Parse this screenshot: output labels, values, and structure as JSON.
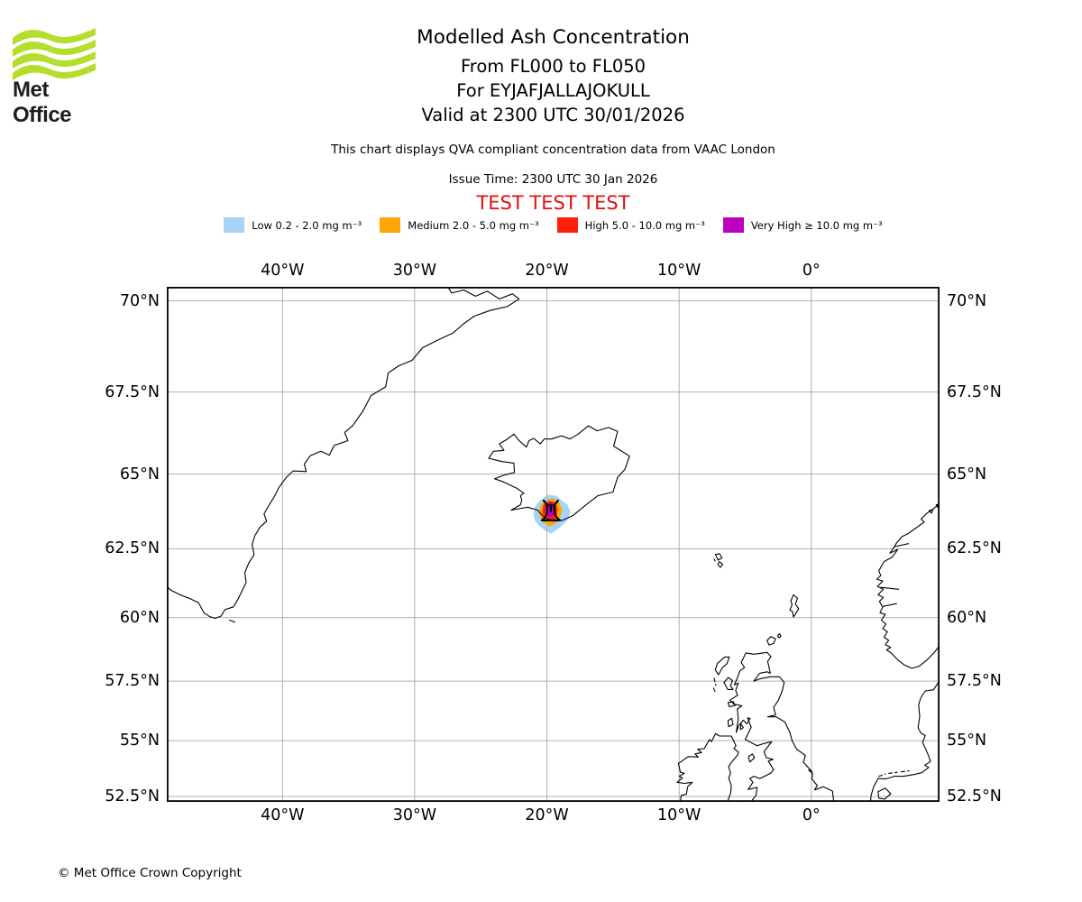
{
  "logo": {
    "brand": "Met Office",
    "wave_color": "#b5de2c",
    "text_color": "#221e1f"
  },
  "header": {
    "title": "Modelled Ash Concentration",
    "subtitle_flight_levels": "From FL000 to FL050",
    "subtitle_volcano": "For EYJAFJALLAJOKULL",
    "subtitle_valid": "Valid at 2300 UTC 30/01/2026",
    "disclaimer": "This chart displays QVA compliant concentration data from VAAC London",
    "issue_time": "Issue Time: 2300 UTC 30 Jan 2026"
  },
  "banner": {
    "text": "TEST TEST TEST",
    "color": "#e01010"
  },
  "legend": {
    "items": [
      {
        "key": "low",
        "label": "Low 0.2 - 2.0 mg m⁻³",
        "color": "#a6d3f8"
      },
      {
        "key": "medium",
        "label": "Medium 2.0 - 5.0 mg m⁻³",
        "color": "#ffa500"
      },
      {
        "key": "high",
        "label": "High 5.0 - 10.0 mg m⁻³",
        "color": "#ff1e0a"
      },
      {
        "key": "very_high",
        "label": "Very High ≥ 10.0 mg m⁻³",
        "color": "#bc00c0"
      }
    ]
  },
  "map": {
    "projection": "mercator",
    "extent": {
      "lon_min": -48.75,
      "lon_max": 9.7,
      "lat_min": 52.25,
      "lat_max": 70.36
    },
    "grid_color": "#b0b0b0",
    "coast_color": "#000000",
    "lon_ticks": [
      {
        "value": -40,
        "label": "40°W"
      },
      {
        "value": -30,
        "label": "30°W"
      },
      {
        "value": -20,
        "label": "20°W"
      },
      {
        "value": -10,
        "label": "10°W"
      },
      {
        "value": 0,
        "label": "0°"
      }
    ],
    "lat_ticks": [
      {
        "value": 70,
        "label": "70°N"
      },
      {
        "value": 67.5,
        "label": "67.5°N"
      },
      {
        "value": 65,
        "label": "65°N"
      },
      {
        "value": 62.5,
        "label": "62.5°N"
      },
      {
        "value": 60,
        "label": "60°N"
      },
      {
        "value": 57.5,
        "label": "57.5°N"
      },
      {
        "value": 55,
        "label": "55°N"
      },
      {
        "value": 52.5,
        "label": "52.5°N"
      }
    ],
    "volcano": {
      "name": "EYJAFJALLAJOKULL",
      "lon": -19.7,
      "lat": 63.75
    },
    "ash_cloud": {
      "center_lon": -19.7,
      "center_lat": 63.75,
      "bands": [
        "low",
        "medium",
        "high",
        "very_high"
      ]
    }
  },
  "footer": {
    "copyright": "© Met Office Crown Copyright"
  }
}
